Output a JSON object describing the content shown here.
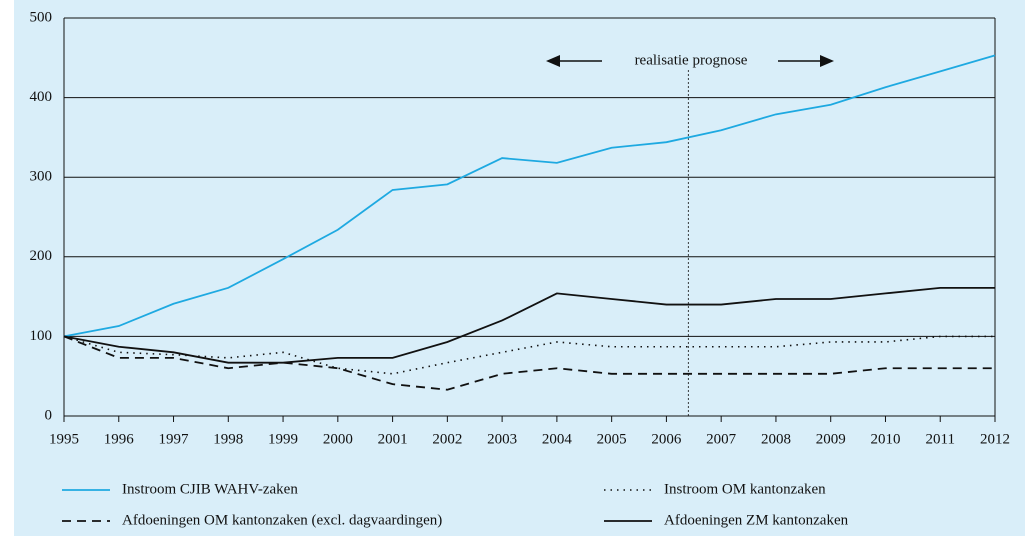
{
  "chart_data": {
    "type": "line",
    "annotation": "realisatie prognose",
    "divider_x": 2006.4,
    "x": [
      1995,
      1996,
      1997,
      1998,
      1999,
      2000,
      2001,
      2002,
      2003,
      2004,
      2005,
      2006,
      2007,
      2008,
      2009,
      2010,
      2011,
      2012
    ],
    "xlim": [
      1995,
      2012
    ],
    "xticks": [
      1995,
      1996,
      1997,
      1998,
      1999,
      2000,
      2001,
      2002,
      2003,
      2004,
      2005,
      2006,
      2007,
      2008,
      2009,
      2010,
      2011,
      2012
    ],
    "ylim": [
      0,
      500
    ],
    "yticks": [
      0,
      100,
      200,
      300,
      400,
      500
    ],
    "grid": true,
    "series": [
      {
        "name": "Instroom CJIB WAHV-zaken",
        "color": "#1ea9e1",
        "style": "solid",
        "values": [
          100,
          113,
          141,
          161,
          197,
          234,
          284,
          291,
          324,
          318,
          337,
          344,
          359,
          379,
          391,
          413,
          433,
          453
        ]
      },
      {
        "name": "Instroom OM kantonzaken",
        "color": "#111111",
        "style": "dotted",
        "values": [
          100,
          80,
          77,
          73,
          80,
          60,
          53,
          67,
          80,
          93,
          87,
          87,
          87,
          87,
          93,
          93,
          100,
          100
        ]
      },
      {
        "name": "Afdoeningen OM kantonzaken (excl. dagvaardingen)",
        "color": "#111111",
        "style": "dashed",
        "values": [
          100,
          73,
          73,
          60,
          67,
          60,
          40,
          33,
          53,
          60,
          53,
          53,
          53,
          53,
          53,
          60,
          60,
          60
        ]
      },
      {
        "name": "Afdoeningen ZM kantonzaken",
        "color": "#111111",
        "style": "solid",
        "values": [
          100,
          87,
          80,
          67,
          67,
          73,
          73,
          93,
          120,
          154,
          147,
          140,
          140,
          147,
          147,
          154,
          161,
          161
        ]
      }
    ]
  }
}
